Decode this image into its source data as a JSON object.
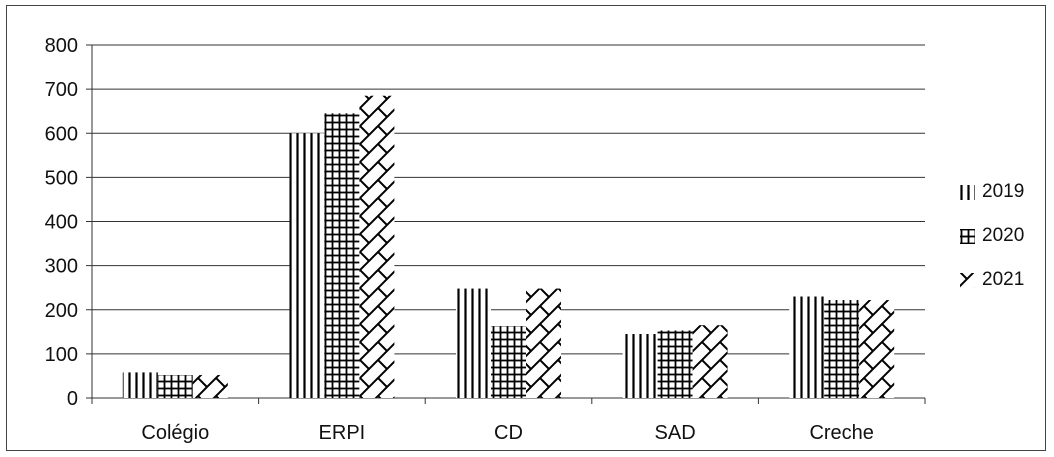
{
  "chart_data": {
    "type": "bar",
    "title": "",
    "xlabel": "",
    "ylabel": "",
    "ylim": [
      0,
      800
    ],
    "yticks": [
      0,
      100,
      200,
      300,
      400,
      500,
      600,
      700,
      800
    ],
    "grid": true,
    "legend_position": "right",
    "categories": [
      "Colégio",
      "ERPI",
      "CD",
      "SAD",
      "Creche"
    ],
    "series": [
      {
        "name": "2019",
        "pattern": "vertical-lines",
        "values": [
          58,
          600,
          248,
          145,
          230
        ]
      },
      {
        "name": "2020",
        "pattern": "grid",
        "values": [
          52,
          645,
          163,
          153,
          222
        ]
      },
      {
        "name": "2021",
        "pattern": "diagonal-cross",
        "values": [
          52,
          685,
          248,
          165,
          222
        ]
      }
    ]
  }
}
